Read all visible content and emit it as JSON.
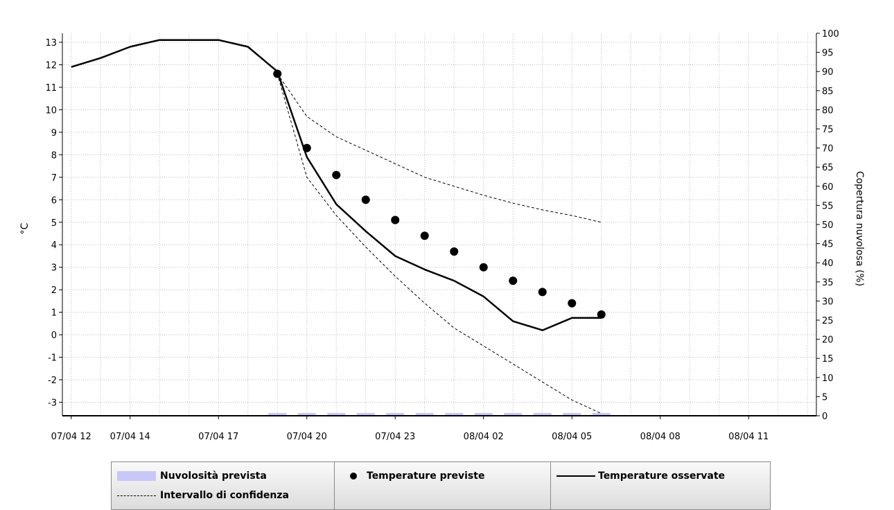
{
  "chart_data": {
    "type": "line",
    "ylabel": "°C",
    "y2label": "Copertura nuvolosa (%)",
    "ylim": [
      -3.6,
      13.4
    ],
    "y2lim": [
      0,
      100
    ],
    "yticks": [
      13,
      12,
      11,
      10,
      9,
      8,
      7,
      6,
      5,
      4,
      3,
      2,
      1,
      0,
      -1,
      -2,
      -3
    ],
    "y2ticks": [
      100,
      95,
      90,
      85,
      80,
      75,
      70,
      65,
      60,
      55,
      50,
      45,
      40,
      35,
      30,
      25,
      20,
      15,
      10,
      5,
      0
    ],
    "x_hours_range": [
      -0.3,
      25.3
    ],
    "xticks": [
      {
        "h": 0,
        "label": "07/04 12"
      },
      {
        "h": 2,
        "label": "07/04 14"
      },
      {
        "h": 5,
        "label": "07/04 17"
      },
      {
        "h": 8,
        "label": "07/04 20"
      },
      {
        "h": 11,
        "label": "07/04 23"
      },
      {
        "h": 14,
        "label": "08/04 02"
      },
      {
        "h": 17,
        "label": "08/04 05"
      },
      {
        "h": 20,
        "label": "08/04 08"
      },
      {
        "h": 23,
        "label": "08/04 11"
      }
    ],
    "grid": true,
    "legend_position": "bottom",
    "series": [
      {
        "name": "Temperature osservate",
        "style": "solid-line",
        "color": "#000000",
        "points": [
          [
            0,
            11.9
          ],
          [
            1,
            12.3
          ],
          [
            2,
            12.8
          ],
          [
            3,
            13.1
          ],
          [
            4,
            13.1
          ],
          [
            5,
            13.1
          ],
          [
            6,
            12.8
          ],
          [
            7,
            11.7
          ],
          [
            8,
            7.9
          ],
          [
            9,
            5.8
          ],
          [
            10,
            4.6
          ],
          [
            11,
            3.5
          ],
          [
            12,
            2.9
          ],
          [
            13,
            2.4
          ],
          [
            14,
            1.7
          ],
          [
            15,
            0.6
          ],
          [
            16,
            0.2
          ],
          [
            17,
            0.75
          ],
          [
            18,
            0.75
          ]
        ]
      },
      {
        "name": "Temperature previste",
        "style": "dots",
        "color": "#000000",
        "points": [
          [
            7,
            11.6
          ],
          [
            8,
            8.3
          ],
          [
            9,
            7.1
          ],
          [
            10,
            6.0
          ],
          [
            11,
            5.1
          ],
          [
            12,
            4.4
          ],
          [
            13,
            3.7
          ],
          [
            14,
            3.0
          ],
          [
            15,
            2.4
          ],
          [
            16,
            1.9
          ],
          [
            17,
            1.4
          ],
          [
            18,
            0.9
          ]
        ]
      },
      {
        "name": "Intervallo di confidenza",
        "style": "dashed-line",
        "color": "#000000",
        "upper": [
          [
            7,
            11.6
          ],
          [
            8,
            9.7
          ],
          [
            9,
            8.8
          ],
          [
            10,
            8.2
          ],
          [
            11,
            7.6
          ],
          [
            12,
            7.0
          ],
          [
            13,
            6.6
          ],
          [
            14,
            6.2
          ],
          [
            15,
            5.85
          ],
          [
            16,
            5.55
          ],
          [
            17,
            5.3
          ],
          [
            18,
            5.0
          ]
        ],
        "lower": [
          [
            7,
            11.6
          ],
          [
            8,
            7.0
          ],
          [
            9,
            5.3
          ],
          [
            10,
            3.9
          ],
          [
            11,
            2.6
          ],
          [
            12,
            1.4
          ],
          [
            13,
            0.3
          ],
          [
            14,
            -0.5
          ],
          [
            15,
            -1.3
          ],
          [
            16,
            -2.1
          ],
          [
            17,
            -2.9
          ],
          [
            18,
            -3.5
          ]
        ]
      },
      {
        "name": "Nuvolosità prevista",
        "style": "bars",
        "color": "#c8c8f8",
        "axis": "right",
        "points": [
          [
            7,
            0
          ],
          [
            8,
            0
          ],
          [
            9,
            0
          ],
          [
            10,
            0
          ],
          [
            11,
            0
          ],
          [
            12,
            0
          ],
          [
            13,
            0
          ],
          [
            14,
            0
          ],
          [
            15,
            0
          ],
          [
            16,
            0
          ],
          [
            17,
            0
          ],
          [
            18,
            0
          ]
        ]
      }
    ]
  },
  "legend": {
    "cloud": "Nuvolosità prevista",
    "confidence": "Intervallo di confidenza",
    "forecast": "Temperature previste",
    "observed": "Temperature osservate"
  }
}
